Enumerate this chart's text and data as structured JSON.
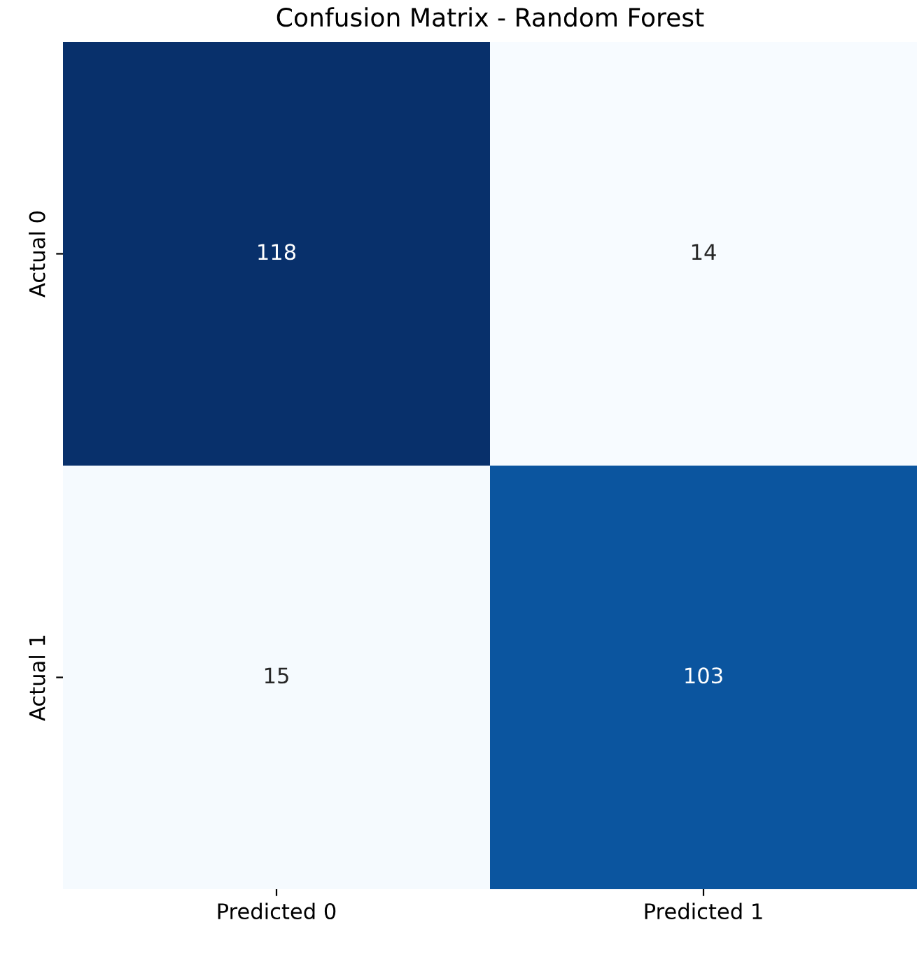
{
  "chart_data": {
    "type": "heatmap",
    "title": "Confusion Matrix - Random Forest",
    "categories": [
      "Predicted 0",
      "Predicted 1"
    ],
    "y_categories": [
      "Actual 0",
      "Actual 1"
    ],
    "cells": [
      [
        118,
        14
      ],
      [
        15,
        103
      ]
    ],
    "data_labels": true
  }
}
